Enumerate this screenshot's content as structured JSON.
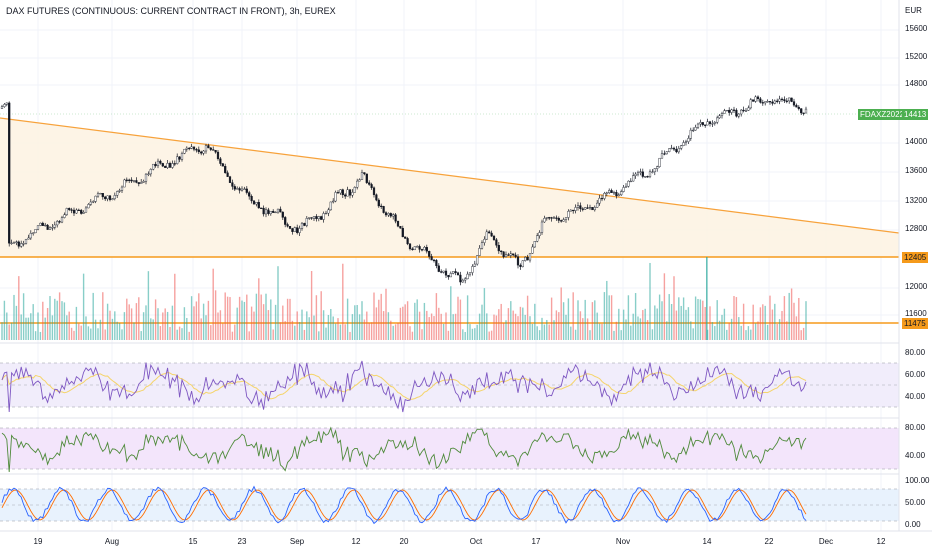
{
  "header": {
    "title": "DAX FUTURES (CONTINUOUS: CURRENT CONTRACT IN FRONT), 3h, EUREX"
  },
  "price_axis": {
    "currency": "EUR",
    "ticks": [
      "15600",
      "15200",
      "14800",
      "14000",
      "13600",
      "13200",
      "12800",
      "12000",
      "11600"
    ]
  },
  "badges": {
    "symbol": "FDAXZ2022",
    "last": "14413",
    "level_1": "12405",
    "level_2": "11475"
  },
  "rsi_panel": {
    "ticks": [
      "80.00",
      "60.00",
      "40.00"
    ]
  },
  "osc_panel": {
    "ticks": [
      "80.00",
      "40.00"
    ]
  },
  "stoch_panel": {
    "ticks": [
      "100.00",
      "50.00",
      "0.00"
    ]
  },
  "time_axis": {
    "ticks": [
      "19",
      "Aug",
      "15",
      "23",
      "Sep",
      "12",
      "20",
      "Oct",
      "17",
      "Nov",
      "14",
      "22",
      "Dec",
      "12"
    ]
  },
  "colors": {
    "up": "#26a69a",
    "down": "#ef5350",
    "candle": "#131722",
    "trend": "#f7a23b",
    "level": "#f59a1b",
    "symbol_badge": "#4caf50",
    "rsi_line": "#7e57c2",
    "rsi_ma": "#f5d46a",
    "osc_line": "#4e8a3a",
    "stoch_k": "#2962ff",
    "stoch_d": "#ff6d00"
  },
  "chart_data": {
    "type": "candlestick",
    "title": "DAX FUTURES (CONTINUOUS: CURRENT CONTRACT IN FRONT), 3h, EUREX",
    "ylim": [
      11350,
      15850
    ],
    "approx_close_path": [
      [
        "19 Jul",
        12600
      ],
      [
        "early Aug",
        13300
      ],
      [
        "mid Aug",
        13950
      ],
      [
        "23 Aug",
        13300
      ],
      [
        "early Sep",
        12800
      ],
      [
        "12 Sep",
        13500
      ],
      [
        "20 Sep",
        12700
      ],
      [
        "late Sep",
        12100
      ],
      [
        "early Oct",
        12750
      ],
      [
        "mid Oct",
        12300
      ],
      [
        "17 Oct",
        12900
      ],
      [
        "late Oct",
        13200
      ],
      [
        "early Nov",
        13600
      ],
      [
        "14 Nov",
        14250
      ],
      [
        "22 Nov",
        14550
      ],
      [
        "end Nov",
        14413
      ]
    ],
    "levels": [
      12405,
      11475
    ],
    "last_price": 14413
  }
}
